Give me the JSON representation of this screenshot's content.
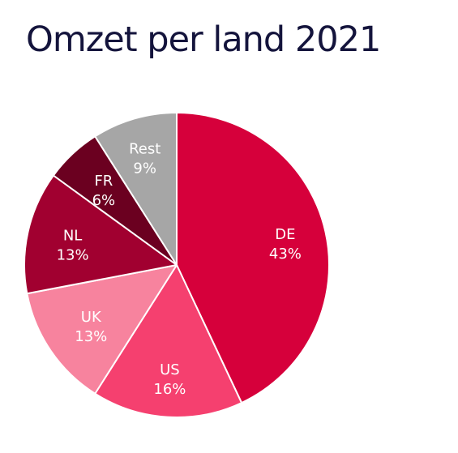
{
  "chart_data": {
    "type": "pie",
    "title": "Omzet per land 2021",
    "slices": [
      {
        "label": "DE",
        "value": 43,
        "display": "43%",
        "color": "#d6003b"
      },
      {
        "label": "US",
        "value": 16,
        "display": "16%",
        "color": "#f5406f"
      },
      {
        "label": "UK",
        "value": 13,
        "display": "13%",
        "color": "#f7839e"
      },
      {
        "label": "NL",
        "value": 13,
        "display": "13%",
        "color": "#a10030"
      },
      {
        "label": "FR",
        "value": 6,
        "display": "6%",
        "color": "#6b0020"
      },
      {
        "label": "Rest",
        "value": 9,
        "display": "9%",
        "color": "#a6a6a6"
      }
    ]
  }
}
